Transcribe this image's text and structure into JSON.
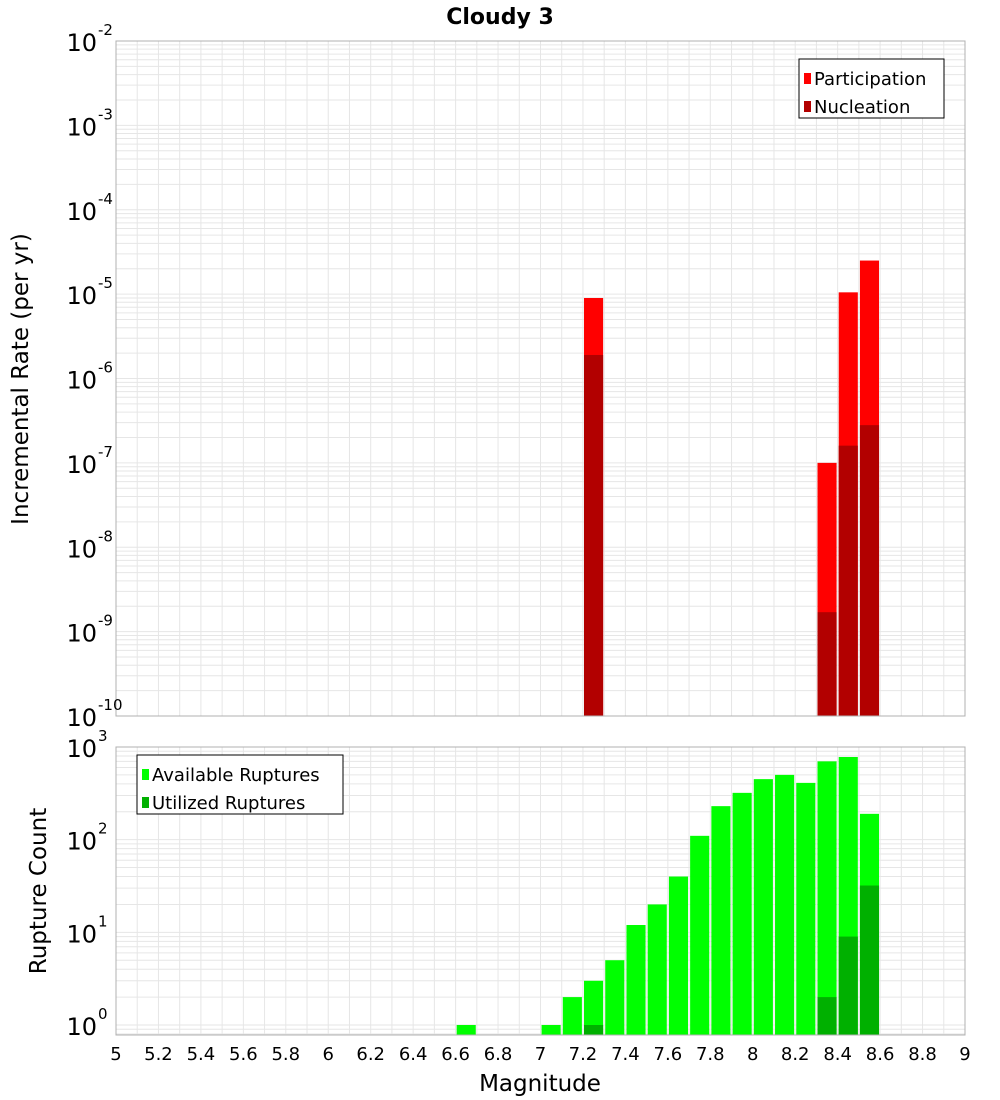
{
  "chart_data": [
    {
      "type": "bar",
      "title": "Cloudy 3",
      "xlabel": "Magnitude",
      "ylabel": "Incremental Rate (per yr)",
      "yscale": "log",
      "ylim": [
        1e-10,
        0.01
      ],
      "xlim": [
        5,
        9
      ],
      "grid": true,
      "legend_position": "top-right",
      "x_ticks": [
        "5",
        "5.2",
        "5.4",
        "5.6",
        "5.8",
        "6",
        "6.2",
        "6.4",
        "6.6",
        "6.8",
        "7",
        "7.2",
        "7.4",
        "7.6",
        "7.8",
        "8",
        "8.2",
        "8.4",
        "8.6",
        "8.8",
        "9"
      ],
      "y_tick_exponents": [
        "-10",
        "-9",
        "-8",
        "-7",
        "-6",
        "-5",
        "-4",
        "-3",
        "-2"
      ],
      "y_tick_base": "10",
      "series": [
        {
          "name": "Participation",
          "color": "#ff0000",
          "points": [
            {
              "x": 7.25,
              "y": 9e-06
            },
            {
              "x": 8.35,
              "y": 1e-07
            },
            {
              "x": 8.45,
              "y": 1.05e-05
            },
            {
              "x": 8.55,
              "y": 2.5e-05
            }
          ]
        },
        {
          "name": "Nucleation",
          "color": "#b20000",
          "points": [
            {
              "x": 7.25,
              "y": 1.9e-06
            },
            {
              "x": 8.35,
              "y": 1.7e-09
            },
            {
              "x": 8.45,
              "y": 1.6e-07
            },
            {
              "x": 8.55,
              "y": 2.8e-07
            }
          ]
        }
      ]
    },
    {
      "type": "bar",
      "xlabel": "Magnitude",
      "ylabel": "Rupture Count",
      "yscale": "log",
      "ylim": [
        0.78,
        1000
      ],
      "xlim": [
        5,
        9
      ],
      "grid": true,
      "legend_position": "top-left",
      "y_tick_exponents": [
        "0",
        "1",
        "2",
        "3"
      ],
      "y_tick_base": "10",
      "series": [
        {
          "name": "Available Ruptures",
          "color": "#00ff00",
          "points": [
            {
              "x": 6.65,
              "y": 1
            },
            {
              "x": 7.05,
              "y": 1
            },
            {
              "x": 7.15,
              "y": 2
            },
            {
              "x": 7.25,
              "y": 3
            },
            {
              "x": 7.35,
              "y": 5
            },
            {
              "x": 7.45,
              "y": 12
            },
            {
              "x": 7.55,
              "y": 20
            },
            {
              "x": 7.65,
              "y": 40
            },
            {
              "x": 7.75,
              "y": 110
            },
            {
              "x": 7.85,
              "y": 230
            },
            {
              "x": 7.95,
              "y": 320
            },
            {
              "x": 8.05,
              "y": 450
            },
            {
              "x": 8.15,
              "y": 500
            },
            {
              "x": 8.25,
              "y": 410
            },
            {
              "x": 8.35,
              "y": 700
            },
            {
              "x": 8.45,
              "y": 780
            },
            {
              "x": 8.55,
              "y": 190
            }
          ]
        },
        {
          "name": "Utilized Ruptures",
          "color": "#00b000",
          "points": [
            {
              "x": 7.25,
              "y": 1
            },
            {
              "x": 8.35,
              "y": 2
            },
            {
              "x": 8.45,
              "y": 9
            },
            {
              "x": 8.55,
              "y": 32
            }
          ]
        }
      ]
    }
  ]
}
